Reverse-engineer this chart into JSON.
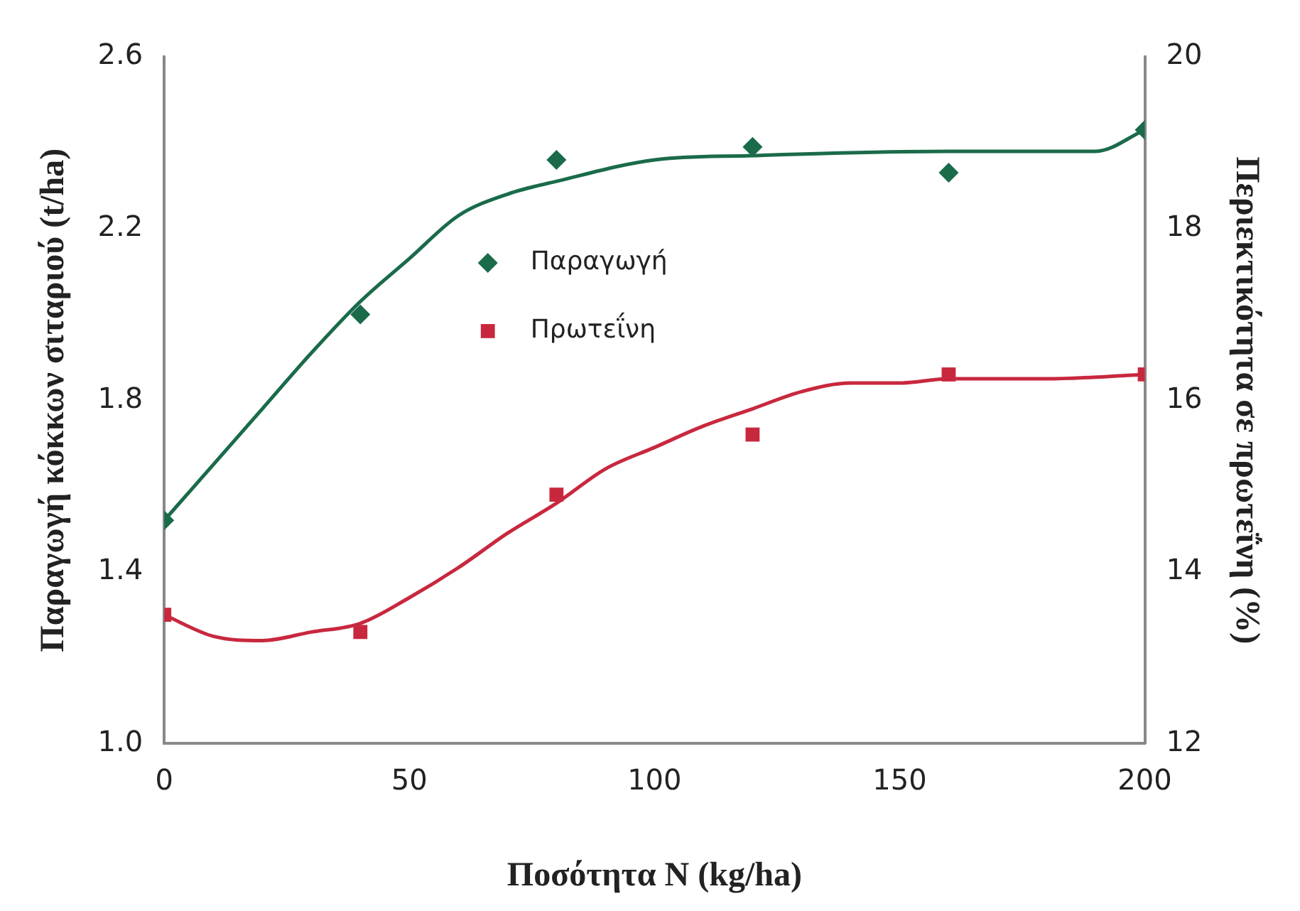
{
  "chart_data": {
    "type": "scatter",
    "xlabel": "Ποσότητα N (kg/ha)",
    "ylabel": "Παραγωγή κόκκων σιταριού (t/ha)",
    "y2label": "Περιεκτικότητα σε πρωτεΐνη (%)",
    "xlim": [
      0,
      200
    ],
    "xticks": [
      0,
      50,
      100,
      150,
      200
    ],
    "ylim": [
      1.0,
      2.6
    ],
    "yticks": [
      {
        "value": 1.0,
        "label": "1.0"
      },
      1.4,
      1.8,
      2.2,
      2.6
    ],
    "y2lim": [
      12,
      20
    ],
    "y2ticks": [
      12,
      14,
      16,
      18,
      20
    ],
    "grid": false,
    "legend": "top",
    "series": [
      {
        "name": "Παραγωγή",
        "type": "scatter",
        "marker": "diamond",
        "color": "#1a6b4a",
        "x": [
          0,
          40,
          80,
          120,
          160,
          200
        ],
        "values": [
          1.52,
          2.0,
          2.36,
          2.39,
          2.33,
          2.43
        ]
      },
      {
        "name": "Πρωτεΐνη",
        "type": "scatter",
        "marker": "square",
        "axis": "y2",
        "color": "#c8283e",
        "x": [
          0,
          40,
          80,
          120,
          160,
          200
        ],
        "values": [
          13.5,
          13.3,
          14.9,
          15.6,
          16.3,
          16.3
        ]
      },
      {
        "type": "line",
        "marker": "none",
        "color": "#1a6b4a",
        "x": [
          0,
          10,
          20,
          30,
          40,
          50,
          60,
          70,
          80,
          100,
          120,
          160,
          190,
          200
        ],
        "values": [
          1.52,
          1.65,
          1.78,
          1.91,
          2.03,
          2.13,
          2.23,
          2.28,
          2.31,
          2.36,
          2.37,
          2.38,
          2.38,
          2.43
        ]
      },
      {
        "type": "line",
        "marker": "none",
        "axis": "y2",
        "color": "#c8283e",
        "x": [
          0,
          10,
          20,
          30,
          40,
          50,
          60,
          70,
          80,
          90,
          100,
          110,
          120,
          130,
          140,
          150,
          160,
          180,
          200
        ],
        "values": [
          13.5,
          13.25,
          13.2,
          13.3,
          13.4,
          13.7,
          14.05,
          14.45,
          14.8,
          15.2,
          15.45,
          15.7,
          15.9,
          16.1,
          16.2,
          16.2,
          16.25,
          16.25,
          16.3
        ]
      }
    ]
  }
}
